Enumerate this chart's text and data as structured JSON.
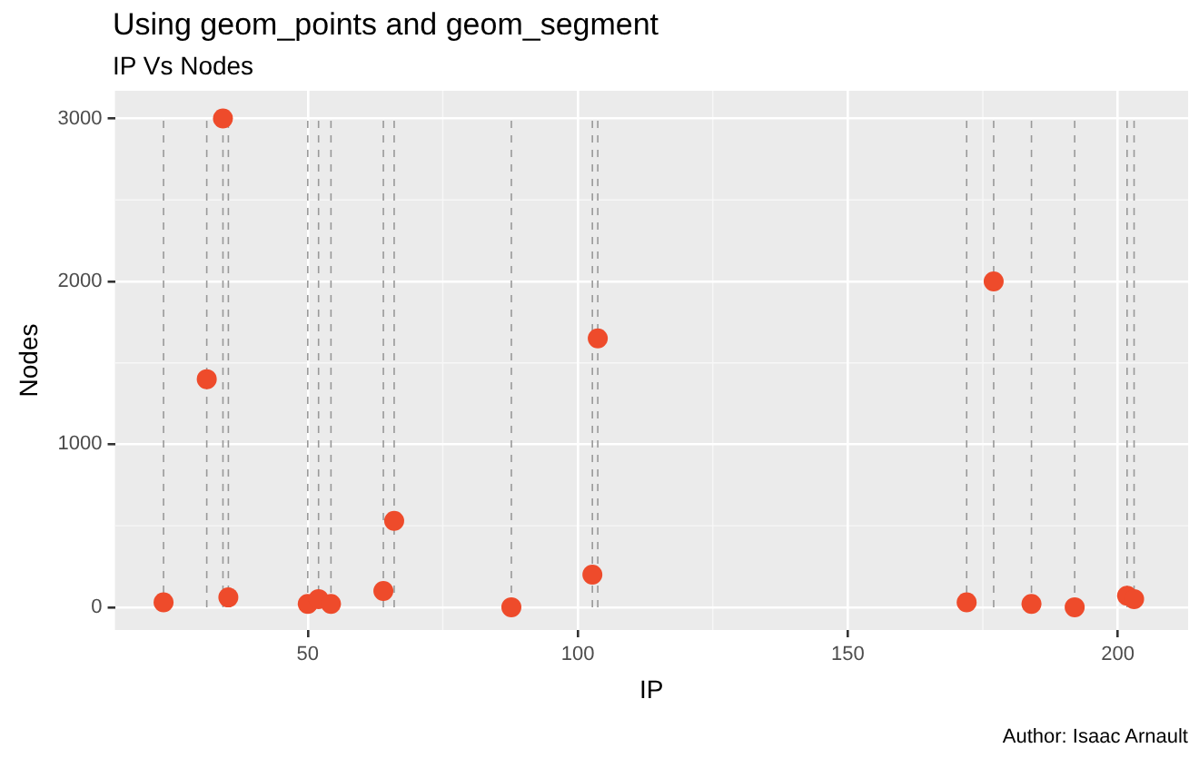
{
  "chart_data": {
    "type": "scatter",
    "title": "Using geom_points and geom_segment",
    "subtitle": "IP Vs Nodes",
    "xlabel": "IP",
    "ylabel": "Nodes",
    "annotations": [
      "Author: Isaac Arnault"
    ],
    "x": [
      23.3,
      31.3,
      34.3,
      35.3,
      50,
      52,
      54.3,
      64,
      66,
      87.7,
      102.7,
      103.7,
      172,
      177,
      184,
      192,
      201.7,
      203
    ],
    "series": [
      {
        "color": "#ee4b2b",
        "values": [
          30,
          1400,
          3000,
          60,
          20,
          50,
          20,
          100,
          530,
          0,
          200,
          1650,
          30,
          2000,
          20,
          0,
          70,
          50
        ]
      }
    ],
    "ref_lines": [
      {
        "axis": "x",
        "value": 23.3,
        "color": "#999999",
        "line_style": "dashed"
      },
      {
        "axis": "x",
        "value": 31.3,
        "color": "#999999",
        "line_style": "dashed"
      },
      {
        "axis": "x",
        "value": 34.3,
        "color": "#999999",
        "line_style": "dashed"
      },
      {
        "axis": "x",
        "value": 35.3,
        "color": "#999999",
        "line_style": "dashed"
      },
      {
        "axis": "x",
        "value": 50,
        "color": "#999999",
        "line_style": "dashed"
      },
      {
        "axis": "x",
        "value": 52,
        "color": "#999999",
        "line_style": "dashed"
      },
      {
        "axis": "x",
        "value": 54.3,
        "color": "#999999",
        "line_style": "dashed"
      },
      {
        "axis": "x",
        "value": 64,
        "color": "#999999",
        "line_style": "dashed"
      },
      {
        "axis": "x",
        "value": 66,
        "color": "#999999",
        "line_style": "dashed"
      },
      {
        "axis": "x",
        "value": 87.7,
        "color": "#999999",
        "line_style": "dashed"
      },
      {
        "axis": "x",
        "value": 102.7,
        "color": "#999999",
        "line_style": "dashed"
      },
      {
        "axis": "x",
        "value": 103.7,
        "color": "#999999",
        "line_style": "dashed"
      },
      {
        "axis": "x",
        "value": 172,
        "color": "#999999",
        "line_style": "dashed"
      },
      {
        "axis": "x",
        "value": 177,
        "color": "#999999",
        "line_style": "dashed"
      },
      {
        "axis": "x",
        "value": 184,
        "color": "#999999",
        "line_style": "dashed"
      },
      {
        "axis": "x",
        "value": 192,
        "color": "#999999",
        "line_style": "dashed"
      },
      {
        "axis": "x",
        "value": 201.7,
        "color": "#999999",
        "line_style": "dashed"
      },
      {
        "axis": "x",
        "value": 203,
        "color": "#999999",
        "line_style": "dashed"
      }
    ],
    "xlim": [
      14.3,
      213
    ],
    "xticks": [
      50,
      100,
      150,
      200
    ],
    "ylim": [
      -140,
      3170
    ],
    "yticks": [
      0,
      1000,
      2000,
      3000
    ],
    "grid": true,
    "marker": "circle"
  }
}
